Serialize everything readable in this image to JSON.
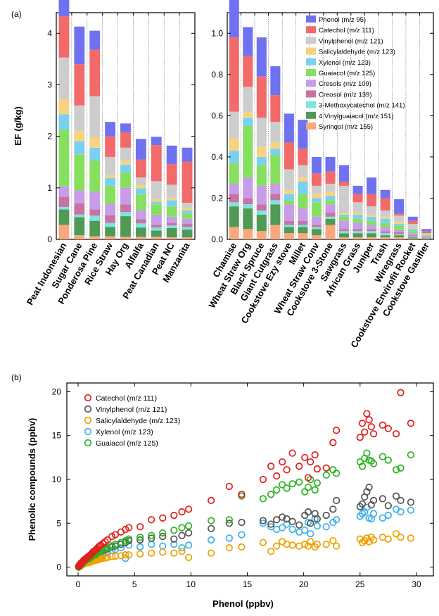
{
  "figure": {
    "panel_a_tag": "(a)",
    "panel_b_tag": "(b)"
  },
  "chart_data": [
    {
      "type": "bar",
      "subtype": "stacked",
      "panel": "(a) left",
      "ylabel": "EF (g/kg)",
      "ylim": [
        0,
        4.4
      ],
      "yticks": [
        0,
        1,
        2,
        3,
        4
      ],
      "categories": [
        "Peat Indonesian",
        "Sugar Cane",
        "Ponderosa Pine",
        "Rice Straw",
        "Hay Org",
        "Alfalfa",
        "Peat Canadian",
        "Peat NC",
        "Manzanita"
      ],
      "series": [
        {
          "name": "Syringol (m/z 155)",
          "color": "#f9a87c",
          "values": [
            0.28,
            0.08,
            0.06,
            0.06,
            0.05,
            0.05,
            0.05,
            0.04,
            0.04
          ]
        },
        {
          "name": "4 Vinylguaiacol (m/z 151)",
          "color": "#4f9a57",
          "values": [
            0.3,
            0.35,
            0.3,
            0.18,
            0.4,
            0.18,
            0.12,
            0.18,
            0.15
          ]
        },
        {
          "name": "3-Methoxycatechol (m/z 141)",
          "color": "#7de3e3",
          "values": [
            0.05,
            0.05,
            0.1,
            0.08,
            0.08,
            0.08,
            0.06,
            0.05,
            0.05
          ]
        },
        {
          "name": "Creosol (m/z 139)",
          "color": "#c873a3",
          "values": [
            0.2,
            0.22,
            0.12,
            0.15,
            0.15,
            0.08,
            0.05,
            0.05,
            0.06
          ]
        },
        {
          "name": "Cresols (m/z 109)",
          "color": "#c79ce8",
          "values": [
            0.2,
            0.25,
            0.35,
            0.22,
            0.32,
            0.18,
            0.2,
            0.12,
            0.1
          ]
        },
        {
          "name": "Guaiacol (m/z 125)",
          "color": "#86df5e",
          "values": [
            1.1,
            0.7,
            0.6,
            0.35,
            0.3,
            0.3,
            0.2,
            0.2,
            0.1
          ]
        },
        {
          "name": "Xylenol (m/z 123)",
          "color": "#79d1f2",
          "values": [
            0.3,
            0.25,
            0.25,
            0.15,
            0.15,
            0.12,
            0.05,
            0.12,
            0.06
          ]
        },
        {
          "name": "Salicylaldehyde (m/z 123)",
          "color": "#f7d280",
          "values": [
            0.3,
            0.2,
            0.2,
            0.06,
            0.08,
            0.06,
            0.05,
            0.05,
            0.05
          ]
        },
        {
          "name": "Vinylphenol (m/z 121)",
          "color": "#cdcdcd",
          "values": [
            0.8,
            0.5,
            0.8,
            0.35,
            0.25,
            0.15,
            0.35,
            0.25,
            0.1
          ]
        },
        {
          "name": "Catechol (m/z 111)",
          "color": "#f26a6a",
          "values": [
            0.8,
            0.8,
            0.9,
            0.4,
            0.3,
            0.35,
            0.7,
            0.4,
            0.8
          ]
        },
        {
          "name": "Phenol (m/z 95)",
          "color": "#6f72f0",
          "values": [
            0.67,
            0.73,
            0.37,
            0.28,
            0.17,
            0.4,
            0.16,
            0.36,
            0.27
          ]
        }
      ]
    },
    {
      "type": "bar",
      "subtype": "stacked",
      "panel": "(a) right",
      "ylim": [
        0,
        1.1
      ],
      "yticks": [
        0.0,
        0.2,
        0.4,
        0.6,
        0.8,
        1.0
      ],
      "yticklabels": [
        "0.0",
        "0.2",
        "0.4",
        "0.6",
        "0.8",
        "1.0"
      ],
      "legend": "top-right",
      "categories": [
        "Chamise",
        "Wheat Straw Org",
        "Black Spruce",
        "Giant Cutgrass",
        "Cookstove Ezy stove",
        "Millet",
        "Wheat Straw Conv",
        "Cookstove 3-Stone",
        "Sawgrass",
        "African Grass",
        "Juniper",
        "Trash",
        "Wiregrass",
        "Cookstove Envirofit Rocket",
        "Cookstove Gasifier"
      ],
      "series": [
        {
          "name": "Syringol (m/z 155)",
          "color": "#f9a87c",
          "values": [
            0.06,
            0.05,
            0.04,
            0.07,
            0.03,
            0.03,
            0.02,
            0.07,
            0.01,
            0.01,
            0.01,
            0.01,
            0.01,
            0.005,
            0.003
          ]
        },
        {
          "name": "4 Vinylguaiacol (m/z 151)",
          "color": "#4f9a57",
          "values": [
            0.1,
            0.1,
            0.08,
            0.1,
            0.03,
            0.03,
            0.03,
            0.03,
            0.02,
            0.02,
            0.02,
            0.01,
            0.01,
            0.005,
            0.003
          ]
        },
        {
          "name": "3-Methoxycatechol (m/z 141)",
          "color": "#7de3e3",
          "values": [
            0.02,
            0.02,
            0.02,
            0.02,
            0.01,
            0.01,
            0.01,
            0.01,
            0.01,
            0.01,
            0.01,
            0.01,
            0.005,
            0.005,
            0.002
          ]
        },
        {
          "name": "Creosol (m/z 139)",
          "color": "#c873a3",
          "values": [
            0.04,
            0.03,
            0.03,
            0.03,
            0.02,
            0.02,
            0.01,
            0.02,
            0.01,
            0.01,
            0.01,
            0.01,
            0.01,
            0.005,
            0.002
          ]
        },
        {
          "name": "Cresols (m/z 109)",
          "color": "#c79ce8",
          "values": [
            0.05,
            0.1,
            0.09,
            0.05,
            0.08,
            0.06,
            0.04,
            0.04,
            0.04,
            0.03,
            0.02,
            0.02,
            0.01,
            0.01,
            0.005
          ]
        },
        {
          "name": "Guaiacol (m/z 125)",
          "color": "#86df5e",
          "values": [
            0.1,
            0.25,
            0.1,
            0.14,
            0.02,
            0.07,
            0.07,
            0.02,
            0.02,
            0.02,
            0.02,
            0.02,
            0.02,
            0.01,
            0.005
          ]
        },
        {
          "name": "Xylenol (m/z 123)",
          "color": "#79d1f2",
          "values": [
            0.06,
            0.04,
            0.04,
            0.03,
            0.03,
            0.06,
            0.02,
            0.02,
            0.01,
            0.02,
            0.02,
            0.02,
            0.01,
            0.01,
            0.003
          ]
        },
        {
          "name": "Salicylaldehyde (m/z 123)",
          "color": "#f7d280",
          "values": [
            0.06,
            0.03,
            0.05,
            0.03,
            0.02,
            0.02,
            0.02,
            0.02,
            0.01,
            0.01,
            0.01,
            0.01,
            0.01,
            0.005,
            0.002
          ]
        },
        {
          "name": "Vinylphenol (m/z 121)",
          "color": "#cdcdcd",
          "values": [
            0.13,
            0.12,
            0.14,
            0.1,
            0.1,
            0.06,
            0.04,
            0.04,
            0.13,
            0.05,
            0.04,
            0.03,
            0.03,
            0.02,
            0.005
          ]
        },
        {
          "name": "Catechol (m/z 111)",
          "color": "#f26a6a",
          "values": [
            0.36,
            0.15,
            0.2,
            0.13,
            0.13,
            0.08,
            0.06,
            0.06,
            0.02,
            0.04,
            0.06,
            0.06,
            0.01,
            0.015,
            0.01
          ]
        },
        {
          "name": "Phenol (m/z 95)",
          "color": "#6f72f0",
          "values": [
            0.3,
            0.14,
            0.19,
            0.14,
            0.14,
            0.14,
            0.08,
            0.07,
            0.08,
            0.04,
            0.08,
            0.04,
            0.07,
            0.02,
            0.01
          ]
        }
      ]
    },
    {
      "type": "scatter",
      "panel": "(b)",
      "xlabel": "Phenol (ppbv)",
      "ylabel": "Phenolic compounds (ppbv)",
      "xlim": [
        -1,
        31.5
      ],
      "ylim": [
        -1,
        21
      ],
      "xticks": [
        0,
        5,
        10,
        15,
        20,
        25,
        30
      ],
      "yticks": [
        0,
        5,
        10,
        15,
        20
      ],
      "legend": "top-left",
      "x": [
        0.05,
        0.1,
        0.15,
        0.2,
        0.25,
        0.3,
        0.35,
        0.4,
        0.5,
        0.6,
        0.7,
        0.8,
        0.9,
        1.0,
        1.1,
        1.2,
        1.3,
        1.4,
        1.5,
        1.6,
        1.7,
        1.8,
        1.9,
        2.0,
        2.2,
        2.4,
        2.6,
        3.0,
        3.3,
        3.8,
        4.2,
        4.5,
        5.5,
        6.5,
        7.5,
        8.5,
        9.2,
        9.8,
        11.8,
        13.4,
        14.5,
        16.4,
        17.1,
        17.6,
        18.1,
        18.5,
        19.0,
        19.6,
        20.1,
        20.4,
        20.6,
        21.0,
        21.2,
        22.0,
        22.6,
        22.9,
        25.0,
        25.2,
        25.4,
        25.6,
        25.8,
        26.0,
        26.2,
        27.0,
        27.5,
        28.2,
        28.6,
        29.5
      ],
      "series": [
        {
          "name": "Catechol (m/z 111)",
          "color": "#e0201e",
          "values": [
            0.1,
            0.2,
            0.3,
            0.35,
            0.45,
            0.5,
            0.55,
            0.6,
            0.8,
            0.85,
            1.0,
            1.1,
            1.2,
            1.3,
            1.4,
            1.55,
            1.7,
            1.8,
            1.9,
            2.0,
            2.15,
            2.3,
            2.4,
            2.5,
            2.7,
            2.9,
            3.1,
            3.5,
            3.7,
            4.0,
            4.3,
            4.5,
            4.6,
            5.4,
            5.6,
            5.9,
            6.3,
            6.6,
            7.6,
            9.2,
            8.3,
            10.0,
            11.5,
            10.4,
            12.0,
            11.1,
            13.0,
            11.5,
            12.5,
            10.2,
            12.0,
            12.8,
            11.2,
            11.3,
            14.2,
            15.6,
            14.8,
            16.4,
            15.4,
            17.5,
            16.8,
            16.0,
            15.2,
            16.2,
            15.8,
            15.2,
            19.9,
            16.4
          ]
        },
        {
          "name": "Vinylphenol (m/z 121)",
          "color": "#555555",
          "values": [
            0.0,
            0.1,
            0.2,
            0.3,
            0.3,
            0.4,
            0.4,
            0.5,
            0.6,
            0.7,
            0.8,
            0.9,
            1.0,
            1.0,
            1.1,
            1.2,
            1.3,
            1.4,
            1.4,
            1.5,
            1.6,
            1.7,
            1.8,
            1.8,
            1.9,
            2.0,
            2.1,
            2.3,
            2.4,
            2.6,
            2.8,
            3.0,
            3.1,
            3.3,
            3.5,
            3.2,
            3.6,
            3.9,
            4.4,
            5.0,
            5.1,
            5.3,
            4.9,
            5.4,
            5.7,
            5.5,
            5.2,
            4.8,
            5.9,
            6.3,
            5.0,
            6.1,
            5.5,
            5.9,
            6.6,
            7.6,
            6.9,
            7.2,
            8.0,
            8.6,
            9.1,
            7.1,
            7.6,
            7.8,
            7.0,
            8.1,
            7.6,
            7.4
          ]
        },
        {
          "name": "Salicylaldehyde (m/z 123)",
          "color": "#f0a000",
          "values": [
            0.0,
            0.05,
            0.1,
            0.15,
            0.2,
            0.2,
            0.25,
            0.3,
            0.35,
            0.4,
            0.45,
            0.5,
            0.5,
            0.55,
            0.6,
            0.65,
            0.7,
            0.7,
            0.75,
            0.8,
            0.85,
            0.85,
            0.9,
            0.95,
            1.0,
            1.05,
            1.1,
            1.2,
            1.25,
            1.3,
            1.4,
            1.4,
            1.5,
            1.6,
            1.7,
            1.6,
            1.8,
            1.1,
            1.6,
            2.2,
            2.3,
            2.8,
            1.8,
            2.4,
            2.9,
            2.6,
            2.5,
            2.4,
            2.6,
            2.4,
            2.9,
            2.3,
            2.6,
            2.6,
            3.0,
            2.4,
            3.2,
            2.8,
            3.0,
            3.3,
            2.9,
            3.4,
            3.1,
            3.4,
            3.2,
            3.8,
            3.4,
            3.3
          ]
        },
        {
          "name": "Xylenol (m/z 123)",
          "color": "#3fb0e8",
          "values": [
            0.0,
            0.05,
            0.1,
            0.2,
            0.25,
            0.3,
            0.3,
            0.4,
            0.5,
            0.55,
            0.6,
            0.7,
            0.75,
            0.8,
            0.9,
            0.95,
            1.0,
            1.05,
            1.1,
            1.2,
            1.25,
            1.3,
            1.4,
            1.45,
            1.5,
            1.6,
            1.7,
            1.9,
            2.0,
            2.2,
            1.0,
            2.5,
            2.3,
            2.6,
            2.4,
            2.6,
            2.2,
            2.5,
            3.1,
            3.3,
            3.7,
            5.0,
            4.6,
            4.3,
            4.5,
            4.9,
            4.3,
            4.0,
            4.2,
            5.1,
            3.8,
            5.5,
            4.7,
            4.6,
            5.1,
            5.4,
            5.8,
            6.1,
            6.3,
            6.8,
            5.6,
            5.5,
            6.1,
            5.6,
            5.9,
            6.6,
            6.3,
            6.5
          ]
        },
        {
          "name": "Guaiacol (m/z 125)",
          "color": "#2cb322",
          "values": [
            0.05,
            0.15,
            0.25,
            0.3,
            0.35,
            0.4,
            0.45,
            0.5,
            0.6,
            0.7,
            0.8,
            0.9,
            1.0,
            1.05,
            1.1,
            1.2,
            1.3,
            1.35,
            1.45,
            1.5,
            1.6,
            1.7,
            1.8,
            1.85,
            2.0,
            2.1,
            2.2,
            2.4,
            2.6,
            2.8,
            3.0,
            3.2,
            3.4,
            3.6,
            3.9,
            4.2,
            4.5,
            4.7,
            5.3,
            5.4,
            8.1,
            7.8,
            8.3,
            8.8,
            9.4,
            9.0,
            9.5,
            9.7,
            8.6,
            9.1,
            10.0,
            8.8,
            9.6,
            10.5,
            11.1,
            10.7,
            12.0,
            11.5,
            12.4,
            13.0,
            12.2,
            12.1,
            11.8,
            12.6,
            12.2,
            11.1,
            11.3,
            12.8
          ]
        }
      ]
    }
  ]
}
